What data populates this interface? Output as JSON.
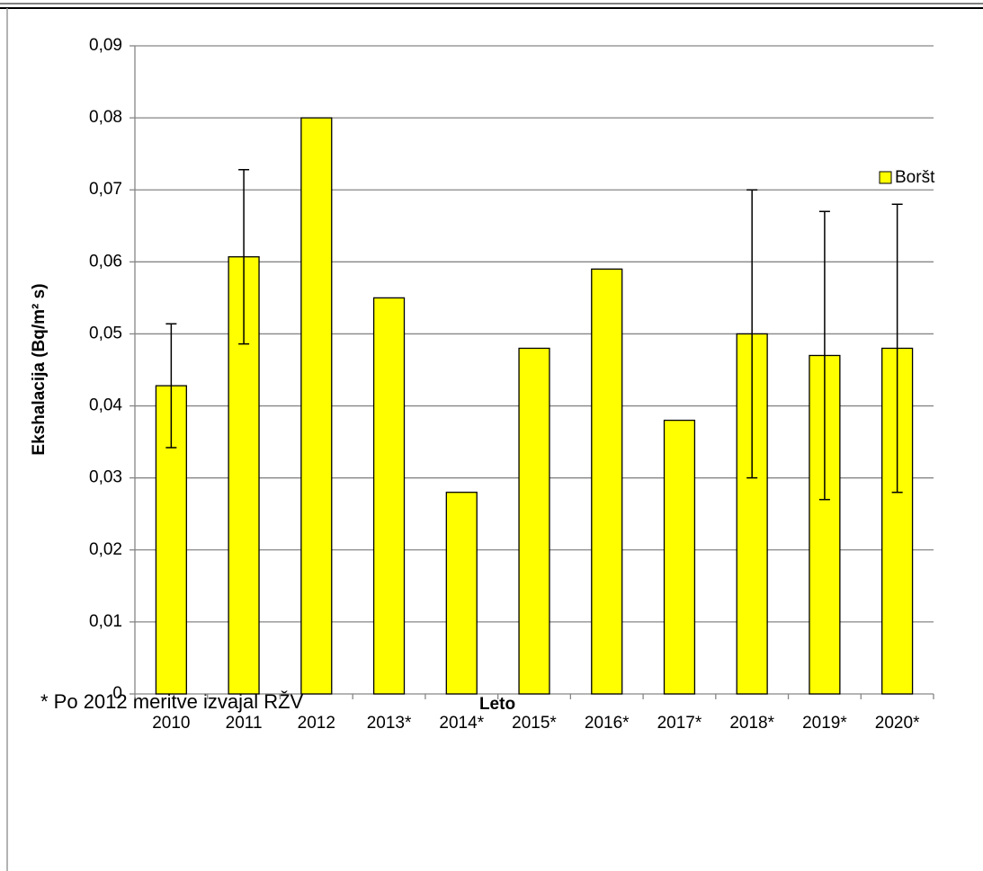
{
  "chart_data": {
    "type": "bar",
    "y_label": "Ekshalacija (Bq/m² s)",
    "x_label": "Leto",
    "note": "* Po 2012 meritve izvajal RŽV",
    "categories": [
      "2010",
      "2011",
      "2012",
      "2013*",
      "2014*",
      "2015*",
      "2016*",
      "2017*",
      "2018*",
      "2019*",
      "2020*"
    ],
    "series": [
      {
        "name": "Boršt",
        "color": "#ffff00",
        "values": [
          0.0428,
          0.0607,
          0.08,
          0.055,
          0.028,
          0.048,
          0.059,
          0.038,
          0.05,
          0.047,
          0.048
        ],
        "errors": [
          0.0086,
          0.0121,
          null,
          null,
          null,
          null,
          null,
          null,
          0.02,
          0.02,
          0.02
        ]
      }
    ],
    "ylim": [
      0,
      0.09
    ],
    "yticks": [
      0,
      {
        "value": 0.01,
        "label": "0,01"
      },
      {
        "value": 0.02,
        "label": "0,02"
      },
      {
        "value": 0.03,
        "label": "0,03"
      },
      {
        "value": 0.04,
        "label": "0,04"
      },
      {
        "value": 0.05,
        "label": "0,05"
      },
      {
        "value": 0.06,
        "label": "0,06"
      },
      {
        "value": 0.07,
        "label": "0,07"
      },
      {
        "value": 0.08,
        "label": "0,08"
      },
      {
        "value": 0.09,
        "label": "0,09"
      }
    ],
    "grid": true,
    "legend": "top-right"
  }
}
